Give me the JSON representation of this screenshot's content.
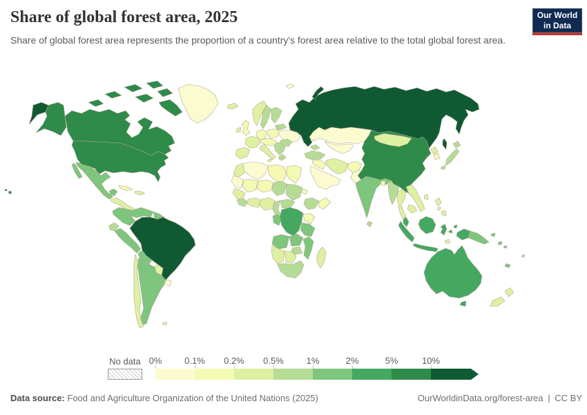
{
  "header": {
    "title": "Share of global forest area, 2025",
    "subtitle": "Share of global forest area represents the proportion of a country's forest area relative to the total global forest area.",
    "logo": {
      "line1": "Our World",
      "line2": "in Data",
      "bg": "#102a52",
      "accent": "#b93c31"
    }
  },
  "legend": {
    "no_data_label": "No data"
  },
  "footer": {
    "source_label": "Data source:",
    "source_text": "Food and Agriculture Organization of the United Nations (2025)",
    "link": "OurWorldinData.org/forest-area",
    "divider": "|",
    "license": "CC BY"
  },
  "chart_data": {
    "type": "choropleth_map",
    "title": "Share of global forest area, 2025",
    "unit": "% of global forest area",
    "projection": "world",
    "legend_position": "bottom",
    "bins": [
      {
        "label": "0%",
        "range": "0–0.1%",
        "color": "#fbfbd0"
      },
      {
        "label": "0.1%",
        "range": "0.1–0.2%",
        "color": "#f4f9b3"
      },
      {
        "label": "0.2%",
        "range": "0.2–0.5%",
        "color": "#def0a2"
      },
      {
        "label": "0.5%",
        "range": "0.5–1%",
        "color": "#b4dc95"
      },
      {
        "label": "1%",
        "range": "1–2%",
        "color": "#7ec57d"
      },
      {
        "label": "2%",
        "range": "2–5%",
        "color": "#45a861"
      },
      {
        "label": "5%",
        "range": "5–10%",
        "color": "#2e8b4a"
      },
      {
        "label": "10%",
        "range": "10%+",
        "color": "#105a33"
      }
    ],
    "no_data_color": "hatched",
    "countries": {
      "russia": 7,
      "sakhalin": 7,
      "novaya-zemlya": 7,
      "chukotka-west": 7,
      "brazil": 7,
      "canada": 6,
      "arctic-islands": 6,
      "alaska": 6,
      "usa": 6,
      "hawaii": 6,
      "china": 6,
      "drc": 5,
      "australia": 5,
      "tasmania": 5,
      "malay-peninsula": 5,
      "sumatra": 5,
      "java": 5,
      "borneo": 5,
      "sulawesi": 5,
      "moluccas": 5,
      "new-guinea-west": 5,
      "mexico": 4,
      "baja": 4,
      "yucatan": 4,
      "colombia": 4,
      "venezuela": 4,
      "guyanas": 4,
      "peru": 4,
      "bolivia": 4,
      "argentina": 4,
      "india": 4,
      "tanzania": 4,
      "angola": 4,
      "zambia": 4,
      "mozambique": 4,
      "gabon-congo": 4,
      "png-east": 4,
      "new-britain": 4,
      "new-caledonia": 4,
      "solomon-islands": 4,
      "ecuador": 3,
      "sweden": 3,
      "finland": 3,
      "baltics": 3,
      "belarus": 3,
      "balkans": 3,
      "greece": 3,
      "romania": 3,
      "caucasus": 3,
      "turkey": 3,
      "japan": 3,
      "myanmar": 3,
      "nepal-bhutan": 3,
      "sri-lanka": 3,
      "chad": 3,
      "sudan": 3,
      "ethiopia": 3,
      "cameroon": 3,
      "car": 3,
      "sierra-liberia": 3,
      "zimbabwe": 3,
      "south-africa": 3,
      "fiji": 3,
      "norway": 2,
      "iceland": 2,
      "ireland": 2,
      "france": 2,
      "iberia": 2,
      "italy": 2,
      "mongolia": 2,
      "iran": 2,
      "north-korea": 2,
      "thailand": 2,
      "laos-vietnam": 2,
      "cambodia": 2,
      "philippines": 2,
      "taiwan": 2,
      "chile": 2,
      "paraguay": 2,
      "falklands": 2,
      "madagascar": 2,
      "namibia": 2,
      "botswana": 2,
      "morocco": 2,
      "ivory-ghana": 2,
      "nigeria": 2,
      "senegal-guinea": 2,
      "central-america": 2,
      "hispaniola": 2,
      "new-zealand": 2,
      "timor": 2,
      "uk": 1,
      "germany": 1,
      "poland": 1,
      "central-europe": 1,
      "cuba": 1,
      "egypt": 1,
      "libya": 1,
      "mali": 1,
      "niger": 1,
      "uganda-kenya": 1,
      "somalia": 1,
      "eritrea": 1,
      "south-korea": 1,
      "bangladesh": 1,
      "afghanistan": 1,
      "syria-iraq": 1,
      "greenland": 0,
      "kazakhstan": 0,
      "central-asia": 0,
      "ukraine": 0,
      "arabia": 0,
      "pakistan": 0,
      "uruguay": 0,
      "algeria": 0,
      "mauritania": 0,
      "svalbard": 0
    }
  }
}
